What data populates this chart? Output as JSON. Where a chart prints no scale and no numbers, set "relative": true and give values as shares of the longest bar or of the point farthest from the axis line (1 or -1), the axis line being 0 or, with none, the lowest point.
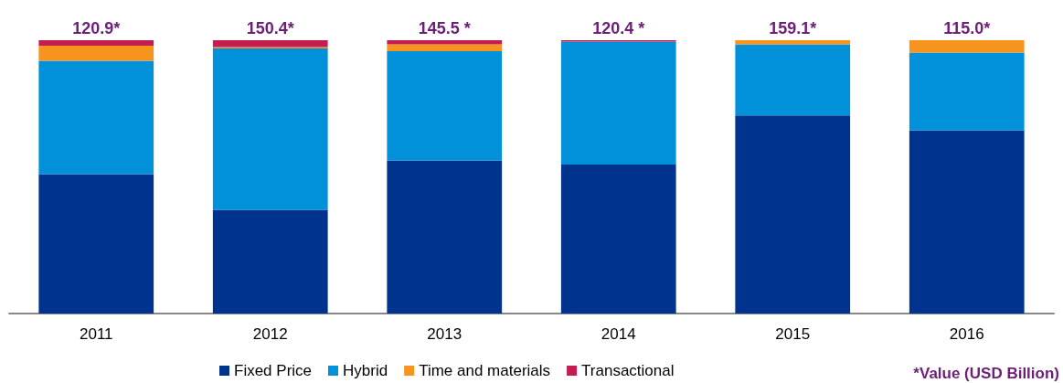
{
  "chart_data": {
    "type": "bar",
    "stacked": true,
    "relative": true,
    "categories": [
      "2011",
      "2012",
      "2013",
      "2014",
      "2015",
      "2016"
    ],
    "series": [
      {
        "name": "Fixed Price",
        "color": "#00338d",
        "values": [
          0.51,
          0.38,
          0.56,
          0.545,
          0.725,
          0.67
        ]
      },
      {
        "name": "Hybrid",
        "color": "#0091da",
        "values": [
          0.415,
          0.59,
          0.4,
          0.45,
          0.26,
          0.285
        ]
      },
      {
        "name": "Time and materials",
        "color": "#f7941d",
        "values": [
          0.055,
          0.005,
          0.025,
          0,
          0.015,
          0.045
        ]
      },
      {
        "name": "Transactional",
        "color": "#c41e4f",
        "values": [
          0.02,
          0.025,
          0.015,
          0.005,
          0,
          0
        ]
      }
    ],
    "annotations": [
      {
        "text": "120.9*",
        "x": "2011",
        "y": 1
      },
      {
        "text": "150.4*",
        "x": "2012",
        "y": 1
      },
      {
        "text": "145.5 *",
        "x": "2013",
        "y": 1
      },
      {
        "text": "120.4 *",
        "x": "2014",
        "y": 1
      },
      {
        "text": "159.1*",
        "x": "2015",
        "y": 1
      },
      {
        "text": "115.0*",
        "x": "2016",
        "y": 1
      },
      "*Value (USD Billion)"
    ],
    "legend": "bottom"
  }
}
